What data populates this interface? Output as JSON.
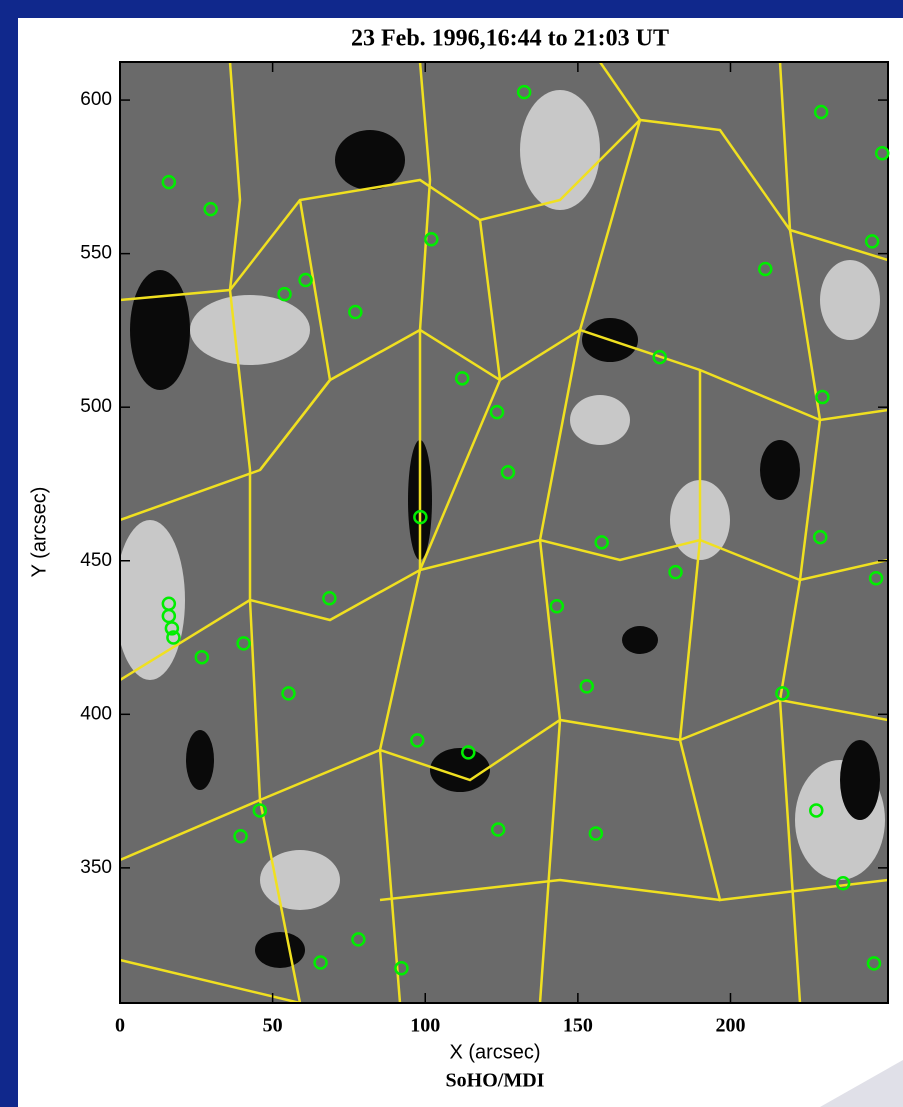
{
  "chart_data": {
    "type": "scatter",
    "title": "23 Feb. 1996,16:44 to 21:03 UT",
    "x_label": "X (arcsec)",
    "y_label": "Y (arcsec)",
    "source": "SoHO/MDI",
    "color": "#00ee00",
    "x": [
      16,
      29.7,
      102,
      132.4,
      229.7,
      249.7,
      246.4,
      211.4,
      60.8,
      53.9,
      77.1,
      112.1,
      176.8,
      230.1,
      123.5,
      127.1,
      98.4,
      157.8,
      229.4,
      182,
      247.7,
      143.1,
      68.6,
      40.5,
      26.8,
      16,
      16,
      17,
      17.5,
      152.9,
      217,
      55.2,
      97.4,
      114.1,
      228.1,
      45.8,
      39.5,
      123.9,
      155.9,
      236.9,
      78.1,
      65.7,
      92.2,
      247
    ],
    "values": [
      573.3,
      564.5,
      554.7,
      602.6,
      596.1,
      582.7,
      554,
      545,
      541.4,
      536.8,
      531,
      509.4,
      516.3,
      503.3,
      498.4,
      478.8,
      464.2,
      456,
      457.7,
      446.3,
      444.3,
      435.2,
      437.8,
      423.1,
      418.6,
      436,
      432,
      428,
      425,
      409.1,
      406.8,
      406.8,
      391.5,
      387.6,
      368.7,
      368.7,
      360.3,
      362.5,
      361.2,
      345,
      326.7,
      319.2,
      317.3,
      318.9
    ],
    "xlim": [
      0,
      251.6
    ],
    "ylim": [
      306,
      612.4
    ],
    "xticks": [
      0,
      50,
      100,
      150,
      200
    ],
    "yticks": [
      350,
      400,
      450,
      500,
      550,
      600
    ]
  }
}
